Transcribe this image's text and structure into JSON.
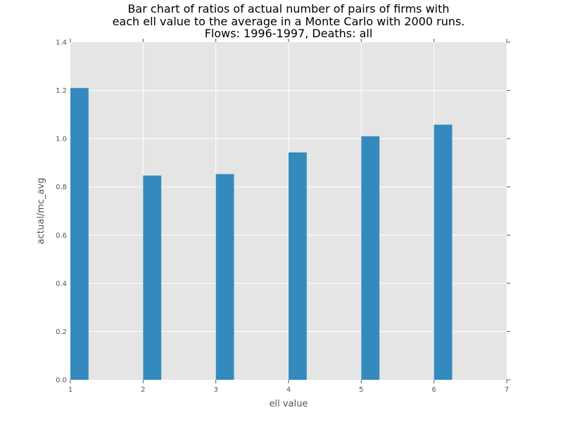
{
  "chart_data": {
    "type": "bar",
    "title_lines": [
      "Bar chart of ratios of actual number of pairs of firms with",
      "each ell value to the average in a Monte Carlo with 2000 runs.",
      "Flows: 1996-1997,  Deaths: all"
    ],
    "xlabel": "ell value",
    "ylabel": "actual/mc_avg",
    "x": [
      1,
      2,
      3,
      4,
      5,
      6
    ],
    "values": [
      1.21,
      0.847,
      0.853,
      0.943,
      1.01,
      1.058
    ],
    "bar_width": 0.25,
    "xlim": [
      1,
      7
    ],
    "ylim": [
      0,
      1.4
    ],
    "xticks": [
      "1",
      "2",
      "3",
      "4",
      "5",
      "6",
      "7"
    ],
    "yticks": [
      "0.0",
      "0.2",
      "0.4",
      "0.6",
      "0.8",
      "1.0",
      "1.2",
      "1.4"
    ],
    "grid": true,
    "colors": {
      "bar": "#348abd",
      "plot_background": "#e5e5e5",
      "grid": "#ffffff",
      "tick_text": "#555555"
    }
  }
}
